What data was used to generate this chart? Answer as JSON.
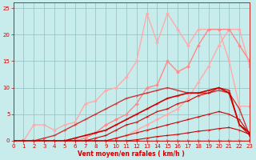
{
  "bg_color": "#c8ecec",
  "grid_color": "#8fbfbf",
  "xlabel": "Vent moyen/en rafales ( km/h )",
  "xlabel_color": "#cc0000",
  "tick_color": "#cc0000",
  "xmin": 0,
  "xmax": 23,
  "ymin": 0,
  "ymax": 26,
  "yticks": [
    0,
    5,
    10,
    15,
    20,
    25
  ],
  "xticks": [
    0,
    1,
    2,
    3,
    4,
    5,
    6,
    7,
    8,
    9,
    10,
    11,
    12,
    13,
    14,
    15,
    16,
    17,
    18,
    19,
    20,
    21,
    22,
    23
  ],
  "lines": [
    {
      "x": [
        0,
        1,
        2,
        3,
        4,
        5,
        6,
        7,
        8,
        9,
        10,
        11,
        12,
        13,
        14,
        15,
        16,
        17,
        18,
        19,
        20,
        21,
        22,
        23
      ],
      "y": [
        0,
        0,
        0,
        0,
        0,
        0,
        0,
        0,
        0,
        0,
        0,
        0,
        0,
        0,
        0,
        0,
        0,
        0,
        0,
        0,
        0,
        0,
        0,
        0
      ],
      "color": "#cc0000",
      "lw": 1.0,
      "marker": "4",
      "ms": 4,
      "zorder": 5
    },
    {
      "x": [
        0,
        1,
        2,
        3,
        4,
        5,
        6,
        7,
        8,
        9,
        10,
        11,
        12,
        13,
        14,
        15,
        16,
        17,
        18,
        19,
        20,
        21,
        22,
        23
      ],
      "y": [
        0,
        0,
        0,
        0,
        0,
        0,
        0,
        0,
        0,
        0,
        0,
        0,
        0.2,
        0.5,
        0.8,
        1.0,
        1.2,
        1.5,
        1.8,
        2.0,
        2.3,
        2.5,
        2.0,
        1.2
      ],
      "color": "#cc0000",
      "lw": 0.8,
      "marker": "4",
      "ms": 3,
      "zorder": 4
    },
    {
      "x": [
        0,
        1,
        2,
        3,
        4,
        5,
        6,
        7,
        8,
        9,
        10,
        11,
        12,
        13,
        14,
        15,
        16,
        17,
        18,
        19,
        20,
        21,
        22,
        23
      ],
      "y": [
        0,
        0,
        0,
        0,
        0,
        0,
        0,
        0,
        0,
        0,
        0.5,
        1,
        1.5,
        2,
        2.5,
        3,
        3.5,
        4,
        4.5,
        5,
        5.5,
        5,
        4,
        1.2
      ],
      "color": "#cc0000",
      "lw": 0.8,
      "marker": "4",
      "ms": 3,
      "zorder": 4
    },
    {
      "x": [
        0,
        1,
        2,
        3,
        4,
        5,
        6,
        7,
        8,
        9,
        10,
        11,
        12,
        13,
        14,
        15,
        16,
        17,
        18,
        19,
        20,
        21,
        22,
        23
      ],
      "y": [
        0,
        0,
        0,
        0,
        0,
        0,
        0,
        0,
        0.5,
        1,
        2,
        3,
        3.5,
        4.5,
        5.5,
        6,
        7,
        7.5,
        8.5,
        9,
        10,
        9.5,
        3,
        1
      ],
      "color": "#cc0000",
      "lw": 0.8,
      "marker": "4",
      "ms": 3,
      "zorder": 4
    },
    {
      "x": [
        0,
        1,
        2,
        3,
        4,
        5,
        6,
        7,
        8,
        9,
        10,
        11,
        12,
        13,
        14,
        15,
        16,
        17,
        18,
        19,
        20,
        21,
        22,
        23
      ],
      "y": [
        0,
        0,
        0,
        0,
        0,
        0,
        0.5,
        1,
        1.5,
        2,
        3,
        4,
        5,
        6,
        7,
        8,
        8.5,
        9,
        9,
        9.5,
        10,
        9,
        3,
        1.5
      ],
      "color": "#cc0000",
      "lw": 1.2,
      "marker": "4",
      "ms": 3,
      "zorder": 4
    },
    {
      "x": [
        0,
        1,
        2,
        3,
        4,
        5,
        6,
        7,
        8,
        9,
        10,
        11,
        12,
        13,
        14,
        15,
        16,
        17,
        18,
        19,
        20,
        21,
        22,
        23
      ],
      "y": [
        0,
        0,
        0,
        0.5,
        1,
        2,
        3,
        4,
        5,
        6,
        7,
        8,
        8.5,
        9,
        9.5,
        10,
        9.5,
        9,
        9,
        9,
        9.5,
        9,
        6,
        1
      ],
      "color": "#cc3333",
      "lw": 1.0,
      "marker": "4",
      "ms": 3,
      "zorder": 3
    },
    {
      "x": [
        0,
        1,
        2,
        3,
        4,
        5,
        6,
        7,
        8,
        9,
        10,
        11,
        12,
        13,
        14,
        15,
        16,
        17,
        18,
        19,
        20,
        21,
        22,
        23
      ],
      "y": [
        0,
        0,
        3,
        3,
        2,
        3,
        3.5,
        7,
        7.5,
        9.5,
        10,
        12,
        15,
        24,
        18.5,
        24,
        21,
        18,
        21,
        21,
        21,
        15,
        6.5,
        6.5
      ],
      "color": "#ffaaaa",
      "lw": 1.0,
      "marker": "D",
      "ms": 2,
      "zorder": 2
    },
    {
      "x": [
        0,
        1,
        2,
        3,
        4,
        5,
        6,
        7,
        8,
        9,
        10,
        11,
        12,
        13,
        14,
        15,
        16,
        17,
        18,
        19,
        20,
        21,
        22,
        23
      ],
      "y": [
        0,
        0,
        0,
        0,
        0,
        0,
        0,
        0,
        0,
        0,
        0.5,
        1,
        2,
        3,
        4,
        5,
        6,
        8,
        11,
        14,
        18,
        21,
        21,
        14
      ],
      "color": "#ffaaaa",
      "lw": 1.0,
      "marker": "D",
      "ms": 2,
      "zorder": 2
    },
    {
      "x": [
        0,
        1,
        2,
        3,
        4,
        5,
        6,
        7,
        8,
        9,
        10,
        11,
        12,
        13,
        14,
        15,
        16,
        17,
        18,
        19,
        20,
        21,
        22,
        23
      ],
      "y": [
        0,
        0,
        0,
        0,
        0,
        0,
        0,
        0.5,
        1.5,
        3,
        4,
        5,
        7,
        10,
        10.5,
        15,
        13,
        14,
        18,
        21,
        21,
        21,
        18,
        15
      ],
      "color": "#ff8888",
      "lw": 1.0,
      "marker": "D",
      "ms": 2,
      "zorder": 2
    }
  ]
}
